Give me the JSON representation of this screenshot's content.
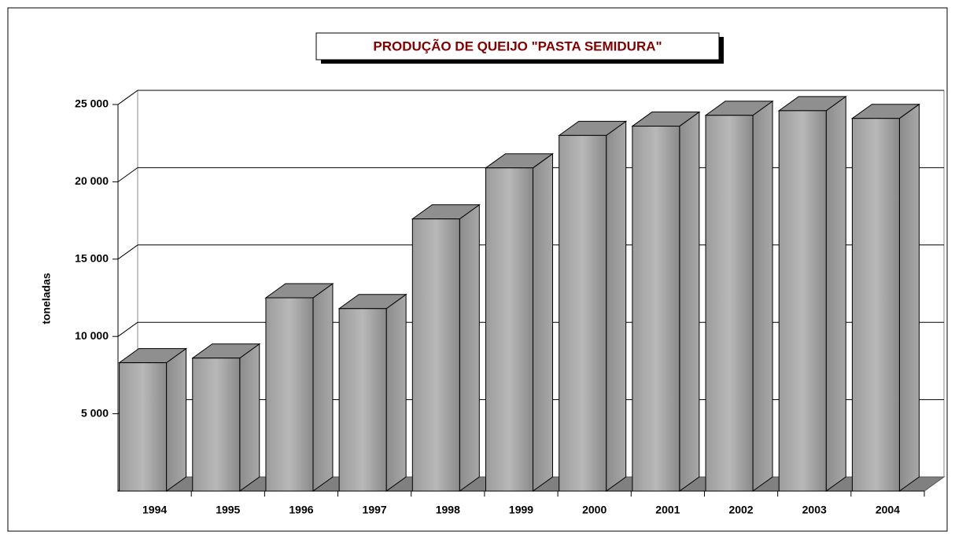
{
  "chart_data": {
    "type": "bar3d",
    "title": "PRODUÇÃO DE QUEIJO \"PASTA SEMIDURA\"",
    "y_axis_label": "toneladas",
    "categories": [
      "1994",
      "1995",
      "1996",
      "1997",
      "1998",
      "1999",
      "2000",
      "2001",
      "2002",
      "2003",
      "2004"
    ],
    "values": [
      8300,
      8600,
      12500,
      11800,
      17600,
      20900,
      23000,
      23600,
      24300,
      24600,
      24100
    ],
    "color": "#a0a0a0",
    "ylim": [
      0,
      25000
    ],
    "yticks": [
      {
        "value": 5000,
        "label": "5 000"
      },
      {
        "value": 10000,
        "label": "10 000"
      },
      {
        "value": 15000,
        "label": "15 000"
      },
      {
        "value": 20000,
        "label": "20 000"
      },
      {
        "value": 25000,
        "label": "25 000"
      }
    ],
    "grid": true
  }
}
